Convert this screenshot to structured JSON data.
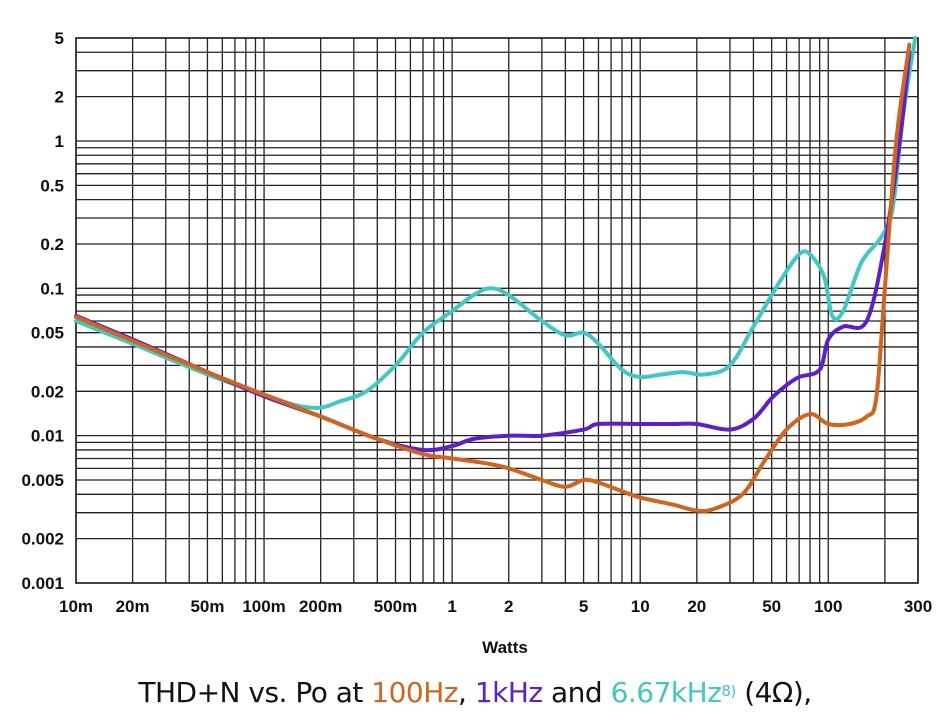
{
  "chart_data": {
    "type": "line",
    "xscale": "log",
    "yscale": "log",
    "xlim": [
      0.01,
      300
    ],
    "ylim": [
      0.001,
      5
    ],
    "xlabel": "Watts",
    "ylabel": "",
    "grid": true,
    "x_ticks": [
      {
        "value": 0.01,
        "label": "10m"
      },
      {
        "value": 0.02,
        "label": "20m"
      },
      {
        "value": 0.05,
        "label": "50m"
      },
      {
        "value": 0.1,
        "label": "100m"
      },
      {
        "value": 0.2,
        "label": "200m"
      },
      {
        "value": 0.5,
        "label": "500m"
      },
      {
        "value": 1,
        "label": "1"
      },
      {
        "value": 2,
        "label": "2"
      },
      {
        "value": 5,
        "label": "5"
      },
      {
        "value": 10,
        "label": "10"
      },
      {
        "value": 20,
        "label": "20"
      },
      {
        "value": 50,
        "label": "50"
      },
      {
        "value": 100,
        "label": "100"
      },
      {
        "value": 300,
        "label": "300"
      }
    ],
    "y_ticks": [
      {
        "value": 5,
        "label": "5"
      },
      {
        "value": 2,
        "label": "2"
      },
      {
        "value": 1,
        "label": "1"
      },
      {
        "value": 0.5,
        "label": "0.5"
      },
      {
        "value": 0.2,
        "label": "0.2"
      },
      {
        "value": 0.1,
        "label": "0.1"
      },
      {
        "value": 0.05,
        "label": "0.05"
      },
      {
        "value": 0.02,
        "label": "0.02"
      },
      {
        "value": 0.01,
        "label": "0.01"
      },
      {
        "value": 0.005,
        "label": "0.005"
      },
      {
        "value": 0.002,
        "label": "0.002"
      },
      {
        "value": 0.001,
        "label": "0.001"
      }
    ],
    "series": [
      {
        "color": "#3fc9c4",
        "points": [
          [
            0.01,
            0.06
          ],
          [
            0.02,
            0.042
          ],
          [
            0.05,
            0.026
          ],
          [
            0.1,
            0.019
          ],
          [
            0.15,
            0.016
          ],
          [
            0.2,
            0.0155
          ],
          [
            0.25,
            0.017
          ],
          [
            0.35,
            0.02
          ],
          [
            0.5,
            0.03
          ],
          [
            0.7,
            0.05
          ],
          [
            1,
            0.07
          ],
          [
            1.3,
            0.09
          ],
          [
            1.6,
            0.1
          ],
          [
            2,
            0.09
          ],
          [
            3,
            0.06
          ],
          [
            4,
            0.048
          ],
          [
            5,
            0.05
          ],
          [
            6,
            0.042
          ],
          [
            8,
            0.028
          ],
          [
            10,
            0.025
          ],
          [
            13,
            0.026
          ],
          [
            17,
            0.027
          ],
          [
            22,
            0.026
          ],
          [
            30,
            0.03
          ],
          [
            40,
            0.055
          ],
          [
            55,
            0.11
          ],
          [
            70,
            0.17
          ],
          [
            80,
            0.17
          ],
          [
            95,
            0.12
          ],
          [
            105,
            0.065
          ],
          [
            120,
            0.07
          ],
          [
            150,
            0.15
          ],
          [
            190,
            0.22
          ],
          [
            220,
            0.35
          ],
          [
            250,
            1.5
          ],
          [
            290,
            5
          ]
        ]
      },
      {
        "color": "#5a1fd0",
        "points": [
          [
            0.01,
            0.065
          ],
          [
            0.02,
            0.045
          ],
          [
            0.05,
            0.027
          ],
          [
            0.1,
            0.0185
          ],
          [
            0.2,
            0.0135
          ],
          [
            0.4,
            0.0095
          ],
          [
            0.7,
            0.008
          ],
          [
            1,
            0.0085
          ],
          [
            1.3,
            0.0095
          ],
          [
            2,
            0.01
          ],
          [
            3,
            0.01
          ],
          [
            5,
            0.011
          ],
          [
            6,
            0.012
          ],
          [
            10,
            0.012
          ],
          [
            15,
            0.012
          ],
          [
            20,
            0.012
          ],
          [
            30,
            0.011
          ],
          [
            40,
            0.013
          ],
          [
            50,
            0.018
          ],
          [
            60,
            0.022
          ],
          [
            70,
            0.025
          ],
          [
            90,
            0.028
          ],
          [
            100,
            0.045
          ],
          [
            120,
            0.055
          ],
          [
            160,
            0.06
          ],
          [
            200,
            0.2
          ],
          [
            240,
            1
          ],
          [
            270,
            4
          ]
        ]
      },
      {
        "color": "#d4641a",
        "points": [
          [
            0.01,
            0.064
          ],
          [
            0.02,
            0.044
          ],
          [
            0.05,
            0.027
          ],
          [
            0.1,
            0.019
          ],
          [
            0.2,
            0.0135
          ],
          [
            0.4,
            0.0095
          ],
          [
            0.7,
            0.0075
          ],
          [
            1,
            0.007
          ],
          [
            1.5,
            0.0065
          ],
          [
            2,
            0.006
          ],
          [
            3,
            0.005
          ],
          [
            4,
            0.0045
          ],
          [
            5,
            0.005
          ],
          [
            6,
            0.0048
          ],
          [
            8,
            0.0042
          ],
          [
            10,
            0.0038
          ],
          [
            15,
            0.0034
          ],
          [
            20,
            0.0031
          ],
          [
            25,
            0.0032
          ],
          [
            35,
            0.004
          ],
          [
            45,
            0.0065
          ],
          [
            60,
            0.011
          ],
          [
            80,
            0.014
          ],
          [
            100,
            0.012
          ],
          [
            130,
            0.012
          ],
          [
            160,
            0.0135
          ],
          [
            180,
            0.018
          ],
          [
            200,
            0.1
          ],
          [
            230,
            1
          ],
          [
            270,
            4.5
          ]
        ]
      }
    ]
  },
  "caption": {
    "prefix": "THD+N vs. Po at ",
    "f1": "100Hz",
    "sep1": ", ",
    "f2": "1kHz",
    "sep2": " and ",
    "f3": "6.67kHz",
    "f3_note": "8)",
    "suffix": " (4Ω),",
    "color_f1": "#d4641a",
    "color_f2": "#5a1fd0",
    "color_f3": "#3fc9c4"
  }
}
